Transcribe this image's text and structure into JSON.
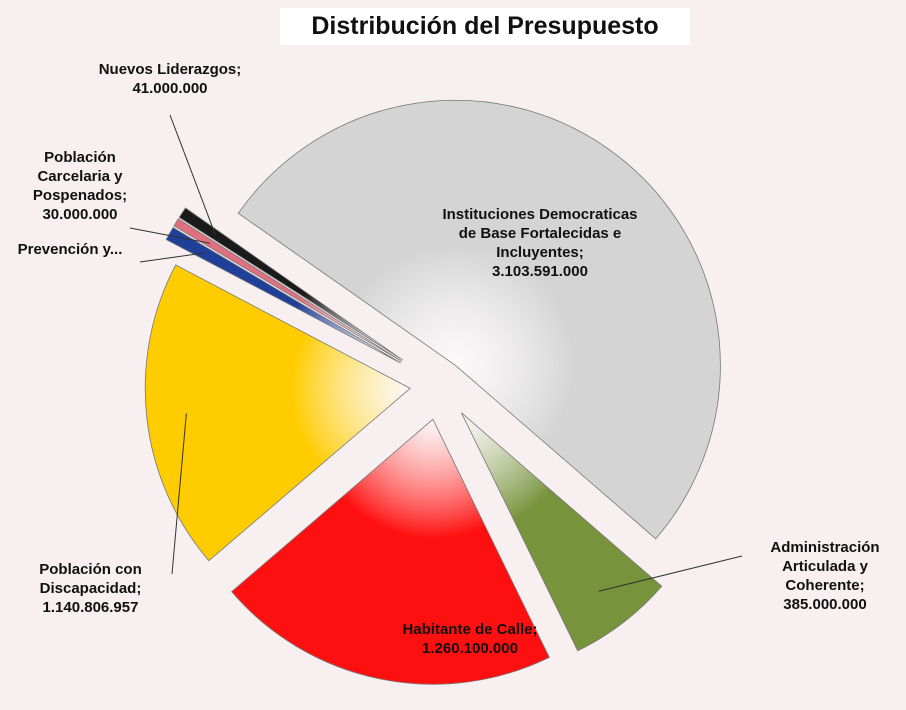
{
  "chart_data": {
    "type": "pie",
    "title": "Distribución del Presupuesto",
    "categories": [
      "Instituciones Democraticas de Base Fortalecidas e Incluyentes",
      "Administración Articulada y Coherente",
      "Habitante de Calle",
      "Población con Discapacidad",
      "Prevención y...",
      "Población Carcelaria y Pospenados",
      "Nuevos Liderazgos"
    ],
    "values": [
      3103591000,
      385000000,
      1260100000,
      1140806957,
      50000000,
      30000000,
      41000000
    ],
    "value_labels": [
      "3.103.591.000",
      "385.000.000",
      "1.260.100.000",
      "1.140.806.957",
      null,
      "30.000.000",
      "41.000.000"
    ],
    "label_separator": ";",
    "colors": [
      "#d4d4d4",
      "#77933c",
      "#ff1010",
      "#ffcc00",
      "#1f3f99",
      "#e07080",
      "#1a1a1a"
    ]
  }
}
